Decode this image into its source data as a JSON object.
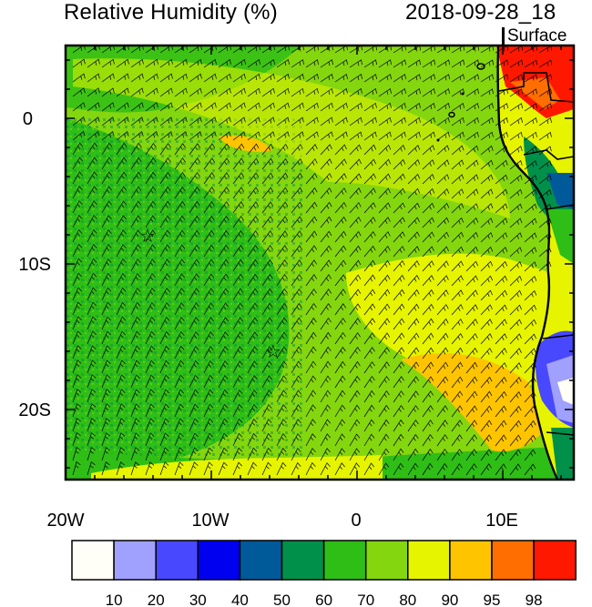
{
  "header": {
    "variable_title": "Relative Humidity (%)",
    "valid_time": "2018-09-28_18",
    "level": "Surface"
  },
  "axes": {
    "lat_ticks": [
      "0",
      "10S",
      "20S"
    ],
    "lon_ticks": [
      "20W",
      "10W",
      "0",
      "10E"
    ]
  },
  "colorbar": {
    "colors": [
      "#fffff8",
      "#a0a0ff",
      "#4848ff",
      "#0000f0",
      "#005a9a",
      "#00904a",
      "#2fbe16",
      "#84d60e",
      "#e6f400",
      "#ffc400",
      "#ff6e00",
      "#ff1800"
    ],
    "labels": [
      "10",
      "20",
      "30",
      "40",
      "50",
      "60",
      "70",
      "80",
      "90",
      "95",
      "98"
    ]
  },
  "markers": [
    {
      "name": "station-marker-1",
      "symbol": "☆"
    },
    {
      "name": "station-marker-2",
      "symbol": "☆"
    }
  ],
  "map": {
    "domain_lon": [
      -20,
      15
    ],
    "domain_lat": [
      -25,
      5
    ],
    "wind_barbs": "surface wind barbs over ocean, southeasterly trades",
    "land_colors": {
      "coast_high": "#ff1800",
      "interior_blue": "#0000f0",
      "interior_light": "#a0a0ff"
    }
  }
}
